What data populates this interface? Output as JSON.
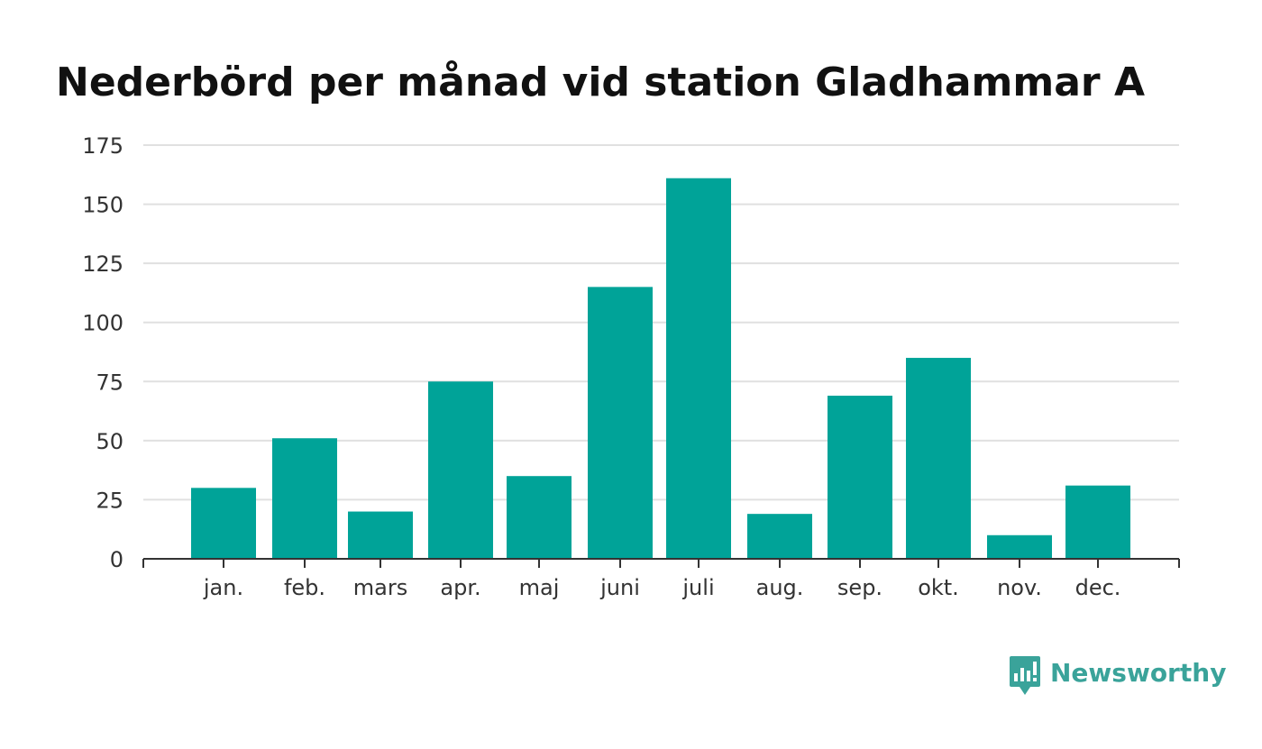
{
  "title": "Nederbörd per månad vid station Gladhammar A",
  "brand": {
    "name": "Newsworthy",
    "color": "#3aa39a"
  },
  "colors": {
    "bar": "#00a398",
    "grid": "#e0e0e0",
    "axis": "#333333"
  },
  "chart_data": {
    "type": "bar",
    "categories": [
      "jan.",
      "feb.",
      "mars",
      "apr.",
      "maj",
      "juni",
      "juli",
      "aug.",
      "sep.",
      "okt.",
      "nov.",
      "dec."
    ],
    "values": [
      30,
      51,
      20,
      75,
      35,
      115,
      161,
      19,
      69,
      85,
      10,
      31
    ],
    "title": "Nederbörd per månad vid station Gladhammar A",
    "xlabel": "",
    "ylabel": "",
    "ylim": [
      0,
      175
    ],
    "yticks": [
      0,
      25,
      50,
      75,
      100,
      125,
      150,
      175
    ],
    "grid": true,
    "legend": "none"
  }
}
